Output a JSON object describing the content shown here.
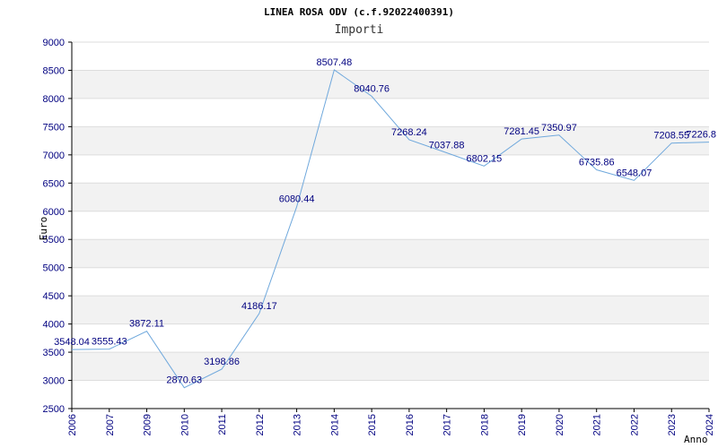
{
  "chart_data": {
    "type": "line",
    "title": "LINEA ROSA ODV (c.f.92022400391)",
    "subtitle": "Importi",
    "xlabel": "Anno",
    "ylabel": "Euro",
    "ylim": [
      2500,
      9000
    ],
    "y_ticks": [
      "2500",
      "3000",
      "3500",
      "4000",
      "4500",
      "5000",
      "5500",
      "6000",
      "6500",
      "7000",
      "7500",
      "8000",
      "8500",
      "9000"
    ],
    "categories": [
      "2006",
      "2007",
      "2009",
      "2010",
      "2011",
      "2012",
      "2013",
      "2014",
      "2015",
      "2016",
      "2017",
      "2018",
      "2019",
      "2020",
      "2021",
      "2022",
      "2023",
      "2024"
    ],
    "values": [
      3548.04,
      3555.43,
      3872.11,
      2870.63,
      3198.86,
      4186.17,
      6080.44,
      8507.48,
      8040.76,
      7268.24,
      7037.88,
      6802.15,
      7281.45,
      7350.97,
      6735.86,
      6548.07,
      7208.55,
      7226.8
    ],
    "data_labels": [
      "3548.04",
      "3555.43",
      "3872.11",
      "2870.63",
      "3198.86",
      "4186.17",
      "6080.44",
      "8507.48",
      "8040.76",
      "7268.24",
      "7037.88",
      "6802.15",
      "7281.45",
      "7350.97",
      "6735.86",
      "6548.07",
      "7208.55",
      "7226.8"
    ],
    "grid": true,
    "line_color": "#6fa8dc",
    "band_color": "#f2f2f2",
    "grid_color": "#dddddd",
    "axis_color": "#000000",
    "text_color": "#000080"
  }
}
